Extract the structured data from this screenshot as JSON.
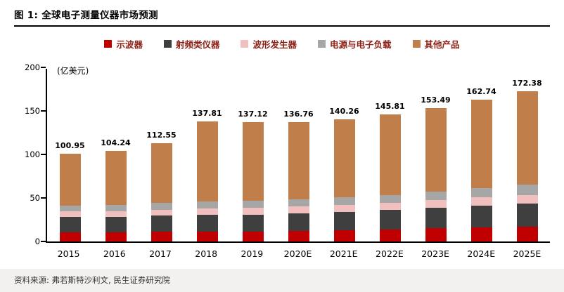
{
  "header": {
    "title": "图 1: 全球电子测量仪器市场预测"
  },
  "footer": {
    "source": "资料来源: 弗若斯特沙利文, 民生证券研究院"
  },
  "chart_data": {
    "type": "bar",
    "stacked": true,
    "title": "全球电子测量仪器市场预测",
    "unit_label": "(亿美元)",
    "legend_position": "top",
    "legend_text_color": "#8b2016",
    "categories": [
      "2015",
      "2016",
      "2017",
      "2018",
      "2019",
      "2020E",
      "2021E",
      "2022E",
      "2023E",
      "2024E",
      "2025E"
    ],
    "series": [
      {
        "name": "示波器",
        "color": "#c00000",
        "values": [
          10.5,
          10.5,
          11.0,
          11.0,
          11.5,
          12.0,
          13.0,
          14.0,
          15.0,
          16.0,
          17.0
        ]
      },
      {
        "name": "射频类仪器",
        "color": "#3f3f3f",
        "values": [
          17.7,
          18.0,
          18.5,
          19.5,
          19.5,
          20.5,
          21.0,
          22.0,
          23.5,
          25.0,
          26.5
        ]
      },
      {
        "name": "波形发生器",
        "color": "#f2bfbf",
        "values": [
          6.5,
          6.5,
          7.0,
          7.5,
          8.0,
          8.0,
          8.0,
          8.5,
          9.0,
          9.5,
          10.0
        ]
      },
      {
        "name": "电源与电子负载",
        "color": "#a6a6a6",
        "values": [
          6.5,
          7.0,
          7.5,
          8.0,
          8.0,
          8.0,
          8.5,
          9.0,
          9.5,
          10.5,
          11.5
        ]
      },
      {
        "name": "其他产品",
        "color": "#c07e4a",
        "values": [
          59.75,
          62.24,
          68.55,
          91.81,
          90.12,
          88.26,
          89.76,
          92.31,
          96.49,
          101.74,
          107.38
        ]
      }
    ],
    "totals": [
      100.95,
      104.24,
      112.55,
      137.81,
      137.12,
      136.76,
      140.26,
      145.81,
      153.49,
      162.74,
      172.38
    ],
    "ylim": [
      0,
      200
    ],
    "yticks": [
      0,
      50,
      100,
      150,
      200
    ],
    "grid": false
  }
}
